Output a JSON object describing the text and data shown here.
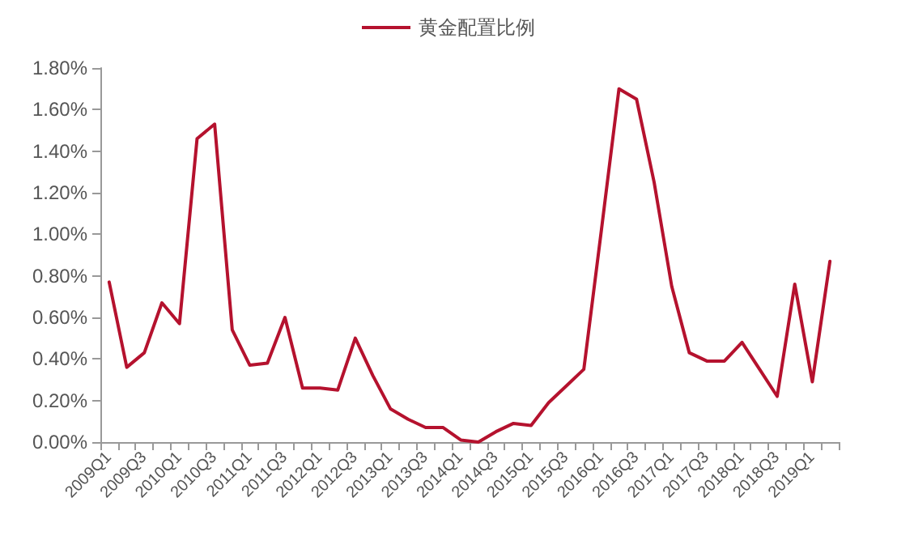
{
  "chart_data": {
    "type": "line",
    "categories": [
      "2009Q1",
      null,
      "2009Q3",
      null,
      "2010Q1",
      null,
      "2010Q3",
      null,
      "2011Q1",
      null,
      "2011Q3",
      null,
      "2012Q1",
      null,
      "2012Q3",
      null,
      "2013Q1",
      null,
      "2013Q3",
      null,
      "2014Q1",
      null,
      "2014Q3",
      null,
      "2015Q1",
      null,
      "2015Q3",
      null,
      "2016Q1",
      null,
      "2016Q3",
      null,
      "2017Q1",
      null,
      "2017Q3",
      null,
      "2018Q1",
      null,
      "2018Q3",
      null,
      "2019Q1",
      null
    ],
    "series": [
      {
        "name": "黄金配置比例",
        "color": "#b5122e",
        "values": [
          0.77,
          0.36,
          0.43,
          0.67,
          0.57,
          1.46,
          1.53,
          0.54,
          0.37,
          0.38,
          0.6,
          0.26,
          0.26,
          0.25,
          0.5,
          0.32,
          0.16,
          0.11,
          0.07,
          0.07,
          0.01,
          0.0,
          0.05,
          0.09,
          0.08,
          0.19,
          0.27,
          0.35,
          1.02,
          1.7,
          1.65,
          1.25,
          0.75,
          0.43,
          0.39,
          0.39,
          0.48,
          0.35,
          0.22,
          0.76,
          0.29,
          0.87
        ]
      }
    ],
    "ylim": [
      0,
      1.8
    ],
    "yticks": [
      {
        "value": 0,
        "label": "0.00%"
      },
      {
        "value": 0.2,
        "label": "0.20%"
      },
      {
        "value": 0.4,
        "label": "0.40%"
      },
      {
        "value": 0.6,
        "label": "0.60%"
      },
      {
        "value": 0.8,
        "label": "0.80%"
      },
      {
        "value": 1.0,
        "label": "1.00%"
      },
      {
        "value": 1.2,
        "label": "1.20%"
      },
      {
        "value": 1.4,
        "label": "1.40%"
      },
      {
        "value": 1.6,
        "label": "1.60%"
      },
      {
        "value": 1.8,
        "label": "1.80%"
      }
    ],
    "legend": "top",
    "grid": false,
    "marker": "none",
    "line_style": "solid"
  }
}
